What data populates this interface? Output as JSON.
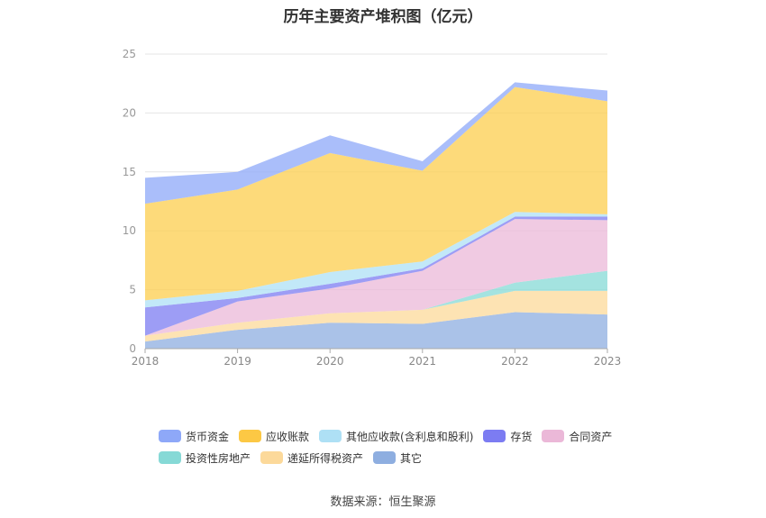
{
  "title": "历年主要资产堆积图（亿元）",
  "source": "数据来源：恒生聚源",
  "chart_data": {
    "type": "area",
    "stacked": true,
    "x": [
      "2018",
      "2019",
      "2020",
      "2021",
      "2022",
      "2023"
    ],
    "ylim": [
      0,
      25
    ],
    "yticks": [
      0,
      5,
      10,
      15,
      20,
      25
    ],
    "grid": true,
    "legend_position": "bottom",
    "series": [
      {
        "name": "其它",
        "color": "#8eaee0",
        "values": [
          0.6,
          1.6,
          2.2,
          2.1,
          3.1,
          2.9
        ]
      },
      {
        "name": "递延所得税资产",
        "color": "#fcd99a",
        "values": [
          0.5,
          0.6,
          0.8,
          1.2,
          1.8,
          2.0
        ]
      },
      {
        "name": "投资性房地产",
        "color": "#86d9d6",
        "values": [
          0.0,
          0.0,
          0.0,
          0.0,
          0.7,
          1.7
        ]
      },
      {
        "name": "合同资产",
        "color": "#ebb8d8",
        "values": [
          0.0,
          1.8,
          2.1,
          3.3,
          5.4,
          4.3
        ]
      },
      {
        "name": "存货",
        "color": "#7c7cf2",
        "values": [
          2.4,
          0.3,
          0.4,
          0.2,
          0.2,
          0.3
        ]
      },
      {
        "name": "其他应收款(含利息和股利)",
        "color": "#aee0f5",
        "values": [
          0.6,
          0.6,
          1.0,
          0.6,
          0.4,
          0.2
        ]
      },
      {
        "name": "应收账款",
        "color": "#fccd4e",
        "values": [
          8.2,
          8.6,
          10.1,
          7.7,
          10.6,
          9.6
        ]
      },
      {
        "name": "货币资金",
        "color": "#8ea8f8",
        "values": [
          2.2,
          1.5,
          1.5,
          0.8,
          0.4,
          0.9
        ]
      }
    ]
  },
  "legend": [
    {
      "name": "货币资金",
      "color": "#8ea8f8"
    },
    {
      "name": "应收账款",
      "color": "#fcc844"
    },
    {
      "name": "其他应收款(含利息和股利)",
      "color": "#aee0f5"
    },
    {
      "name": "存货",
      "color": "#7c7cf2"
    },
    {
      "name": "合同资产",
      "color": "#ebb8d8"
    },
    {
      "name": "投资性房地产",
      "color": "#86d9d6"
    },
    {
      "name": "递延所得税资产",
      "color": "#fcd99a"
    },
    {
      "name": "其它",
      "color": "#8eaee0"
    }
  ]
}
